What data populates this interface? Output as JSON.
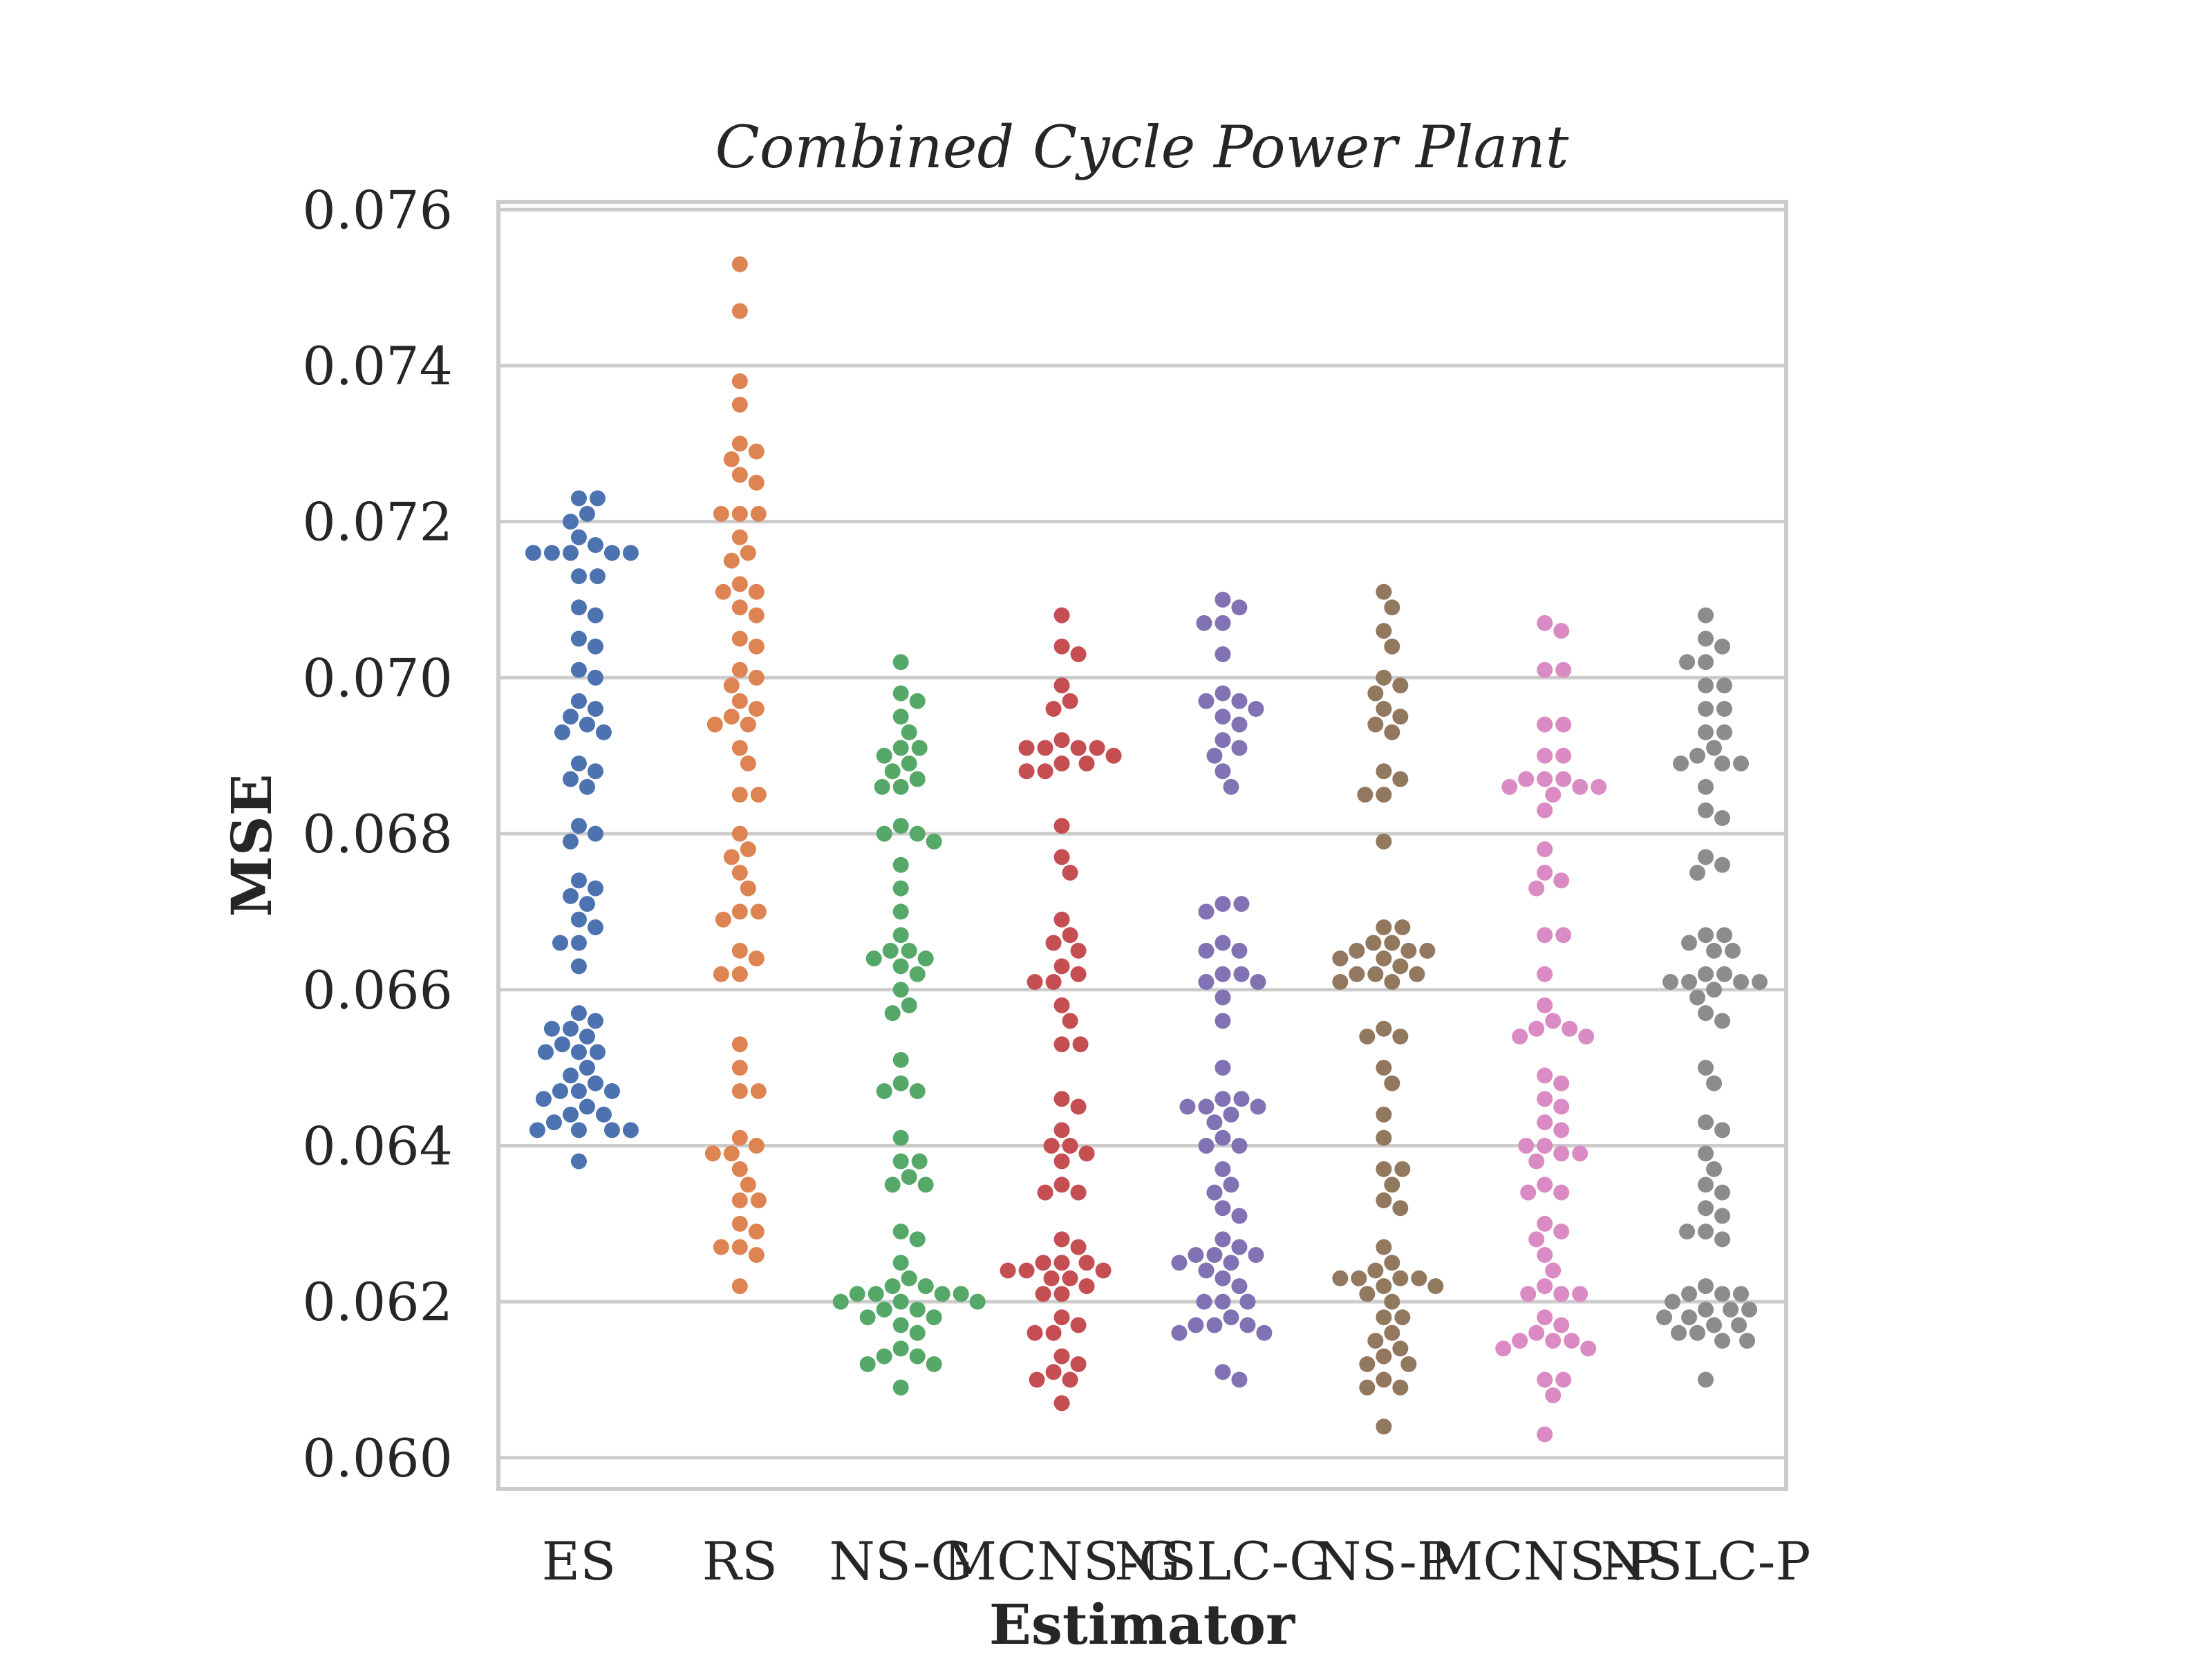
{
  "chart_data": {
    "type": "scatter",
    "subtype": "swarm",
    "title": "Combined Cycle Power Plant",
    "xlabel": "Estimator",
    "ylabel": "MSE",
    "ylim": [
      0.0596,
      0.0761
    ],
    "yticks": [
      "0.060",
      "0.062",
      "0.064",
      "0.066",
      "0.068",
      "0.070",
      "0.072",
      "0.074",
      "0.076"
    ],
    "grid": true,
    "legend": false,
    "categories": [
      "ES",
      "RS",
      "NS-G",
      "MCNS-G",
      "NSLC-G",
      "NS-P",
      "MCNS-P",
      "NSLC-P"
    ],
    "colors": [
      "#4c72b0",
      "#dd8452",
      "#55a868",
      "#c44e52",
      "#8172b3",
      "#937860",
      "#da8bc3",
      "#8c8c8c"
    ],
    "series": [
      {
        "category": "ES",
        "values": [
          0.0723,
          0.0723,
          0.0721,
          0.072,
          0.0718,
          0.0717,
          0.0716,
          0.0716,
          0.0716,
          0.0716,
          0.0716,
          0.0713,
          0.0713,
          0.0709,
          0.0708,
          0.0705,
          0.0704,
          0.0701,
          0.07,
          0.0697,
          0.0696,
          0.0695,
          0.0694,
          0.0693,
          0.0693,
          0.0689,
          0.0688,
          0.0687,
          0.0686,
          0.0681,
          0.068,
          0.0679,
          0.0674,
          0.0673,
          0.0672,
          0.0671,
          0.0669,
          0.0668,
          0.0666,
          0.0666,
          0.0663,
          0.0657,
          0.0656,
          0.0655,
          0.0655,
          0.0654,
          0.0653,
          0.0652,
          0.0652,
          0.0652,
          0.065,
          0.0649,
          0.0648,
          0.0647,
          0.0647,
          0.0647,
          0.0646,
          0.0645,
          0.0644,
          0.0644,
          0.0643,
          0.0642,
          0.0642,
          0.0642,
          0.0642,
          0.0638
        ]
      },
      {
        "category": "RS",
        "values": [
          0.0753,
          0.0747,
          0.0738,
          0.0735,
          0.073,
          0.0729,
          0.0728,
          0.0726,
          0.0725,
          0.0721,
          0.0721,
          0.0721,
          0.0718,
          0.0716,
          0.0715,
          0.0712,
          0.0711,
          0.0711,
          0.0709,
          0.0708,
          0.0705,
          0.0704,
          0.0701,
          0.07,
          0.0699,
          0.0697,
          0.0696,
          0.0695,
          0.0694,
          0.0694,
          0.0691,
          0.0689,
          0.0685,
          0.0685,
          0.068,
          0.0678,
          0.0677,
          0.0675,
          0.0673,
          0.067,
          0.067,
          0.0669,
          0.0665,
          0.0664,
          0.0662,
          0.0662,
          0.0653,
          0.065,
          0.0647,
          0.0647,
          0.0641,
          0.064,
          0.0639,
          0.0639,
          0.0637,
          0.0635,
          0.0633,
          0.0633,
          0.063,
          0.0629,
          0.0627,
          0.0627,
          0.0626,
          0.0622
        ]
      },
      {
        "category": "NS-G",
        "values": [
          0.0702,
          0.0698,
          0.0697,
          0.0695,
          0.0693,
          0.0691,
          0.0691,
          0.069,
          0.0689,
          0.0688,
          0.0687,
          0.0686,
          0.0686,
          0.0681,
          0.068,
          0.068,
          0.0679,
          0.0676,
          0.0673,
          0.067,
          0.0667,
          0.0665,
          0.0665,
          0.0664,
          0.0664,
          0.0663,
          0.0662,
          0.066,
          0.0658,
          0.0657,
          0.0651,
          0.0648,
          0.0647,
          0.0647,
          0.0641,
          0.0638,
          0.0638,
          0.0636,
          0.0635,
          0.0635,
          0.0629,
          0.0628,
          0.0625,
          0.0623,
          0.0622,
          0.0622,
          0.0621,
          0.0621,
          0.0621,
          0.0621,
          0.062,
          0.062,
          0.062,
          0.0619,
          0.0619,
          0.0618,
          0.0618,
          0.0617,
          0.0616,
          0.0614,
          0.0613,
          0.0613,
          0.0612,
          0.0612,
          0.0609
        ]
      },
      {
        "category": "MCNS-G",
        "values": [
          0.0708,
          0.0704,
          0.0703,
          0.0699,
          0.0697,
          0.0696,
          0.0692,
          0.0691,
          0.0691,
          0.0691,
          0.0691,
          0.069,
          0.0689,
          0.0689,
          0.0688,
          0.0688,
          0.0681,
          0.0677,
          0.0675,
          0.0669,
          0.0667,
          0.0666,
          0.0665,
          0.0663,
          0.0662,
          0.0661,
          0.0661,
          0.0658,
          0.0656,
          0.0653,
          0.0653,
          0.0646,
          0.0645,
          0.0642,
          0.064,
          0.064,
          0.0639,
          0.0638,
          0.0635,
          0.0634,
          0.0634,
          0.0628,
          0.0627,
          0.0625,
          0.0625,
          0.0625,
          0.0624,
          0.0624,
          0.0624,
          0.0623,
          0.0623,
          0.0622,
          0.0621,
          0.0621,
          0.0618,
          0.0617,
          0.0616,
          0.0616,
          0.0613,
          0.0612,
          0.0611,
          0.061,
          0.061,
          0.0607
        ]
      },
      {
        "category": "NSLC-G",
        "values": [
          0.071,
          0.0709,
          0.0707,
          0.0707,
          0.0703,
          0.0698,
          0.0697,
          0.0697,
          0.0696,
          0.0695,
          0.0694,
          0.0692,
          0.0691,
          0.069,
          0.0688,
          0.0686,
          0.0671,
          0.0671,
          0.067,
          0.0666,
          0.0665,
          0.0665,
          0.0662,
          0.0662,
          0.0661,
          0.0661,
          0.0659,
          0.0656,
          0.065,
          0.0646,
          0.0646,
          0.0645,
          0.0645,
          0.0645,
          0.0644,
          0.0643,
          0.0641,
          0.064,
          0.064,
          0.0637,
          0.0635,
          0.0634,
          0.0632,
          0.0631,
          0.0628,
          0.0627,
          0.0626,
          0.0626,
          0.0626,
          0.0625,
          0.0625,
          0.0624,
          0.0623,
          0.0622,
          0.062,
          0.062,
          0.062,
          0.0618,
          0.0617,
          0.0617,
          0.0617,
          0.0616,
          0.0616,
          0.0611,
          0.061
        ]
      },
      {
        "category": "NS-P",
        "values": [
          0.0711,
          0.0709,
          0.0706,
          0.0704,
          0.07,
          0.0699,
          0.0698,
          0.0696,
          0.0695,
          0.0694,
          0.0693,
          0.0688,
          0.0687,
          0.0685,
          0.0685,
          0.0679,
          0.0668,
          0.0668,
          0.0666,
          0.0666,
          0.0665,
          0.0665,
          0.0665,
          0.0664,
          0.0664,
          0.0663,
          0.0662,
          0.0662,
          0.0662,
          0.0661,
          0.0661,
          0.0655,
          0.0654,
          0.0654,
          0.065,
          0.0648,
          0.0644,
          0.0641,
          0.0637,
          0.0637,
          0.0635,
          0.0633,
          0.0632,
          0.0627,
          0.0625,
          0.0624,
          0.0623,
          0.0623,
          0.0623,
          0.0623,
          0.0622,
          0.0622,
          0.0621,
          0.062,
          0.0618,
          0.0618,
          0.0616,
          0.0615,
          0.0614,
          0.0613,
          0.0612,
          0.0612,
          0.061,
          0.0609,
          0.0609,
          0.0604
        ]
      },
      {
        "category": "MCNS-P",
        "values": [
          0.0707,
          0.0706,
          0.0701,
          0.0701,
          0.0694,
          0.0694,
          0.069,
          0.069,
          0.0687,
          0.0687,
          0.0687,
          0.0686,
          0.0686,
          0.0686,
          0.0685,
          0.0683,
          0.0678,
          0.0675,
          0.0674,
          0.0673,
          0.0667,
          0.0667,
          0.0662,
          0.0658,
          0.0656,
          0.0655,
          0.0655,
          0.0654,
          0.0654,
          0.0649,
          0.0648,
          0.0646,
          0.0645,
          0.0643,
          0.0642,
          0.064,
          0.064,
          0.0639,
          0.0639,
          0.0638,
          0.0635,
          0.0634,
          0.0634,
          0.063,
          0.0629,
          0.0628,
          0.0626,
          0.0624,
          0.0622,
          0.0621,
          0.0621,
          0.0621,
          0.0618,
          0.0617,
          0.0616,
          0.0615,
          0.0615,
          0.0615,
          0.0614,
          0.0614,
          0.061,
          0.061,
          0.0608,
          0.0603
        ]
      },
      {
        "category": "NSLC-P",
        "values": [
          0.0708,
          0.0705,
          0.0704,
          0.0702,
          0.0702,
          0.0699,
          0.0699,
          0.0696,
          0.0696,
          0.0693,
          0.0693,
          0.0691,
          0.069,
          0.0689,
          0.0689,
          0.0689,
          0.0686,
          0.0683,
          0.0682,
          0.0677,
          0.0676,
          0.0675,
          0.0667,
          0.0667,
          0.0666,
          0.0665,
          0.0665,
          0.0662,
          0.0662,
          0.0661,
          0.0661,
          0.0661,
          0.0661,
          0.066,
          0.0659,
          0.0657,
          0.0656,
          0.065,
          0.0648,
          0.0643,
          0.0642,
          0.0639,
          0.0637,
          0.0635,
          0.0634,
          0.0632,
          0.0631,
          0.0629,
          0.0629,
          0.0628,
          0.0622,
          0.0621,
          0.0621,
          0.0621,
          0.062,
          0.0619,
          0.0619,
          0.0619,
          0.0618,
          0.0618,
          0.0617,
          0.0617,
          0.0616,
          0.0616,
          0.0615,
          0.0615,
          0.061
        ]
      }
    ]
  }
}
